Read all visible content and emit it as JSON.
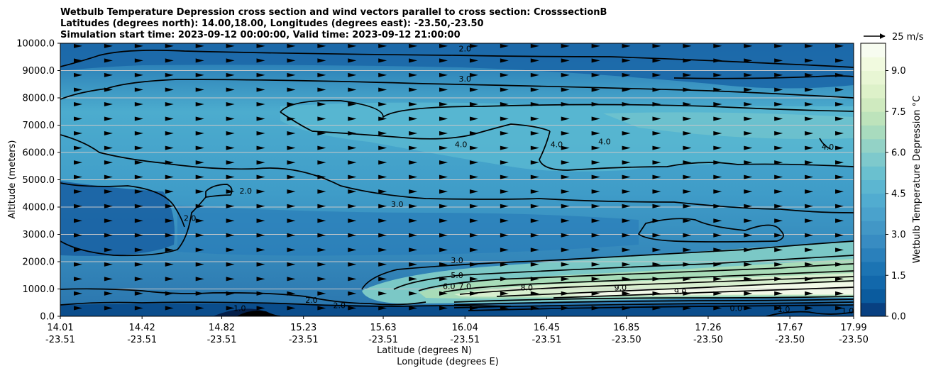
{
  "chart_data": {
    "type": "heatmap",
    "title_lines": [
      "Wetbulb Temperature Depression cross section and wind vectors parallel to cross section: CrosssectionB",
      "Latitudes (degrees north): 14.00,18.00, Longitudes (degrees east): -23.50,-23.50",
      "Simulation start time: 2023-09-12 00:00:00, Valid time: 2023-09-12 21:00:00"
    ],
    "xlabel": "Latitude (degrees N)",
    "xlabel2": "Longitude (degrees E)",
    "ylabel": "Altitude (meters)",
    "x_ticks": [
      {
        "lat": "14.01",
        "lon": "-23.51"
      },
      {
        "lat": "14.42",
        "lon": "-23.51"
      },
      {
        "lat": "14.82",
        "lon": "-23.51"
      },
      {
        "lat": "15.23",
        "lon": "-23.51"
      },
      {
        "lat": "15.63",
        "lon": "-23.51"
      },
      {
        "lat": "16.04",
        "lon": "-23.51"
      },
      {
        "lat": "16.45",
        "lon": "-23.51"
      },
      {
        "lat": "16.85",
        "lon": "-23.50"
      },
      {
        "lat": "17.26",
        "lon": "-23.50"
      },
      {
        "lat": "17.67",
        "lon": "-23.50"
      },
      {
        "lat": "17.99",
        "lon": "-23.50"
      }
    ],
    "y_ticks": [
      "0.0",
      "1000.0",
      "2000.0",
      "3000.0",
      "4000.0",
      "5000.0",
      "6000.0",
      "7000.0",
      "8000.0",
      "9000.0",
      "10000.0"
    ],
    "ylim": [
      0,
      10000
    ],
    "grid": "horizontal",
    "colorbar": {
      "label": "Wetbulb Temperature Depression °C",
      "range": [
        0.0,
        10.0
      ],
      "ticks": [
        "0.0",
        "1.5",
        "3.0",
        "4.5",
        "6.0",
        "7.5",
        "9.0"
      ],
      "colormap": "GnBu_r",
      "color_low": "#084081",
      "color_high": "#f7fcf0"
    },
    "quiver_key": {
      "label": "25 m/s",
      "speed": 25
    },
    "wind_direction": "left-to-right (parallel to cross section)",
    "contour_levels": [
      0.0,
      1.0,
      2.0,
      3.0,
      4.0,
      5.0,
      6.0,
      7.0,
      8.0,
      9.0
    ],
    "contour_labels": [
      {
        "text": "2.0",
        "lat": 16.04,
        "alt": 9700
      },
      {
        "text": "3.0",
        "lat": 16.04,
        "alt": 8600
      },
      {
        "text": "4.0",
        "lat": 16.02,
        "alt": 6200
      },
      {
        "text": "4.0",
        "lat": 16.5,
        "alt": 6200
      },
      {
        "text": "4.0",
        "lat": 16.74,
        "alt": 6300
      },
      {
        "text": "4.0",
        "lat": 17.86,
        "alt": 6100
      },
      {
        "text": "2.0",
        "lat": 14.94,
        "alt": 4500
      },
      {
        "text": "2.0",
        "lat": 14.66,
        "alt": 3500
      },
      {
        "text": "3.0",
        "lat": 15.7,
        "alt": 4000
      },
      {
        "text": "3.0",
        "lat": 16.0,
        "alt": 1950
      },
      {
        "text": "5.0",
        "lat": 16.0,
        "alt": 1400
      },
      {
        "text": "6.0",
        "lat": 15.96,
        "alt": 1000
      },
      {
        "text": "7.0",
        "lat": 16.04,
        "alt": 1000
      },
      {
        "text": "8.0",
        "lat": 16.35,
        "alt": 950
      },
      {
        "text": "9.0",
        "lat": 16.82,
        "alt": 950
      },
      {
        "text": "9.0",
        "lat": 17.12,
        "alt": 800
      },
      {
        "text": "2.0",
        "lat": 15.27,
        "alt": 500
      },
      {
        "text": "2.0",
        "lat": 15.41,
        "alt": 300
      },
      {
        "text": "1.0",
        "lat": 14.91,
        "alt": 200
      },
      {
        "text": "0.0",
        "lat": 17.4,
        "alt": 200
      },
      {
        "text": "1.0",
        "lat": 17.64,
        "alt": 150
      },
      {
        "text": "1.0",
        "lat": 17.96,
        "alt": 100
      }
    ]
  }
}
